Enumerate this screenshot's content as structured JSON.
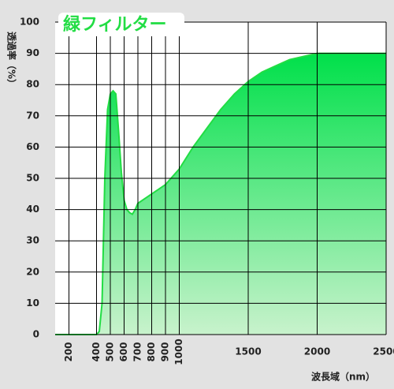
{
  "chart_data": {
    "type": "area",
    "title": "緑フィルター",
    "y_label": "透過率（%）",
    "x_label": "波長域（nm）",
    "x": [
      100,
      200,
      400,
      420,
      440,
      460,
      480,
      500,
      520,
      540,
      560,
      580,
      600,
      620,
      640,
      660,
      680,
      700,
      800,
      900,
      1000,
      1100,
      1200,
      1300,
      1400,
      1500,
      1600,
      1700,
      1800,
      1900,
      2000,
      2500
    ],
    "values": [
      0,
      0,
      0,
      1,
      10,
      50,
      72,
      77,
      78,
      77,
      65,
      52,
      43,
      40,
      39,
      38.5,
      40,
      42,
      45,
      48,
      53,
      60,
      66,
      72,
      77,
      81,
      84,
      86,
      88,
      89,
      90,
      90
    ],
    "color": "#22dd44",
    "xlim": [
      100,
      2500
    ],
    "ylim": [
      0,
      100
    ],
    "xticks": [
      200,
      400,
      500,
      600,
      700,
      800,
      900,
      1000,
      1500,
      2000,
      2500
    ],
    "yticks": [
      0,
      10,
      20,
      30,
      40,
      50,
      60,
      70,
      80,
      90,
      100
    ],
    "grid": true
  }
}
